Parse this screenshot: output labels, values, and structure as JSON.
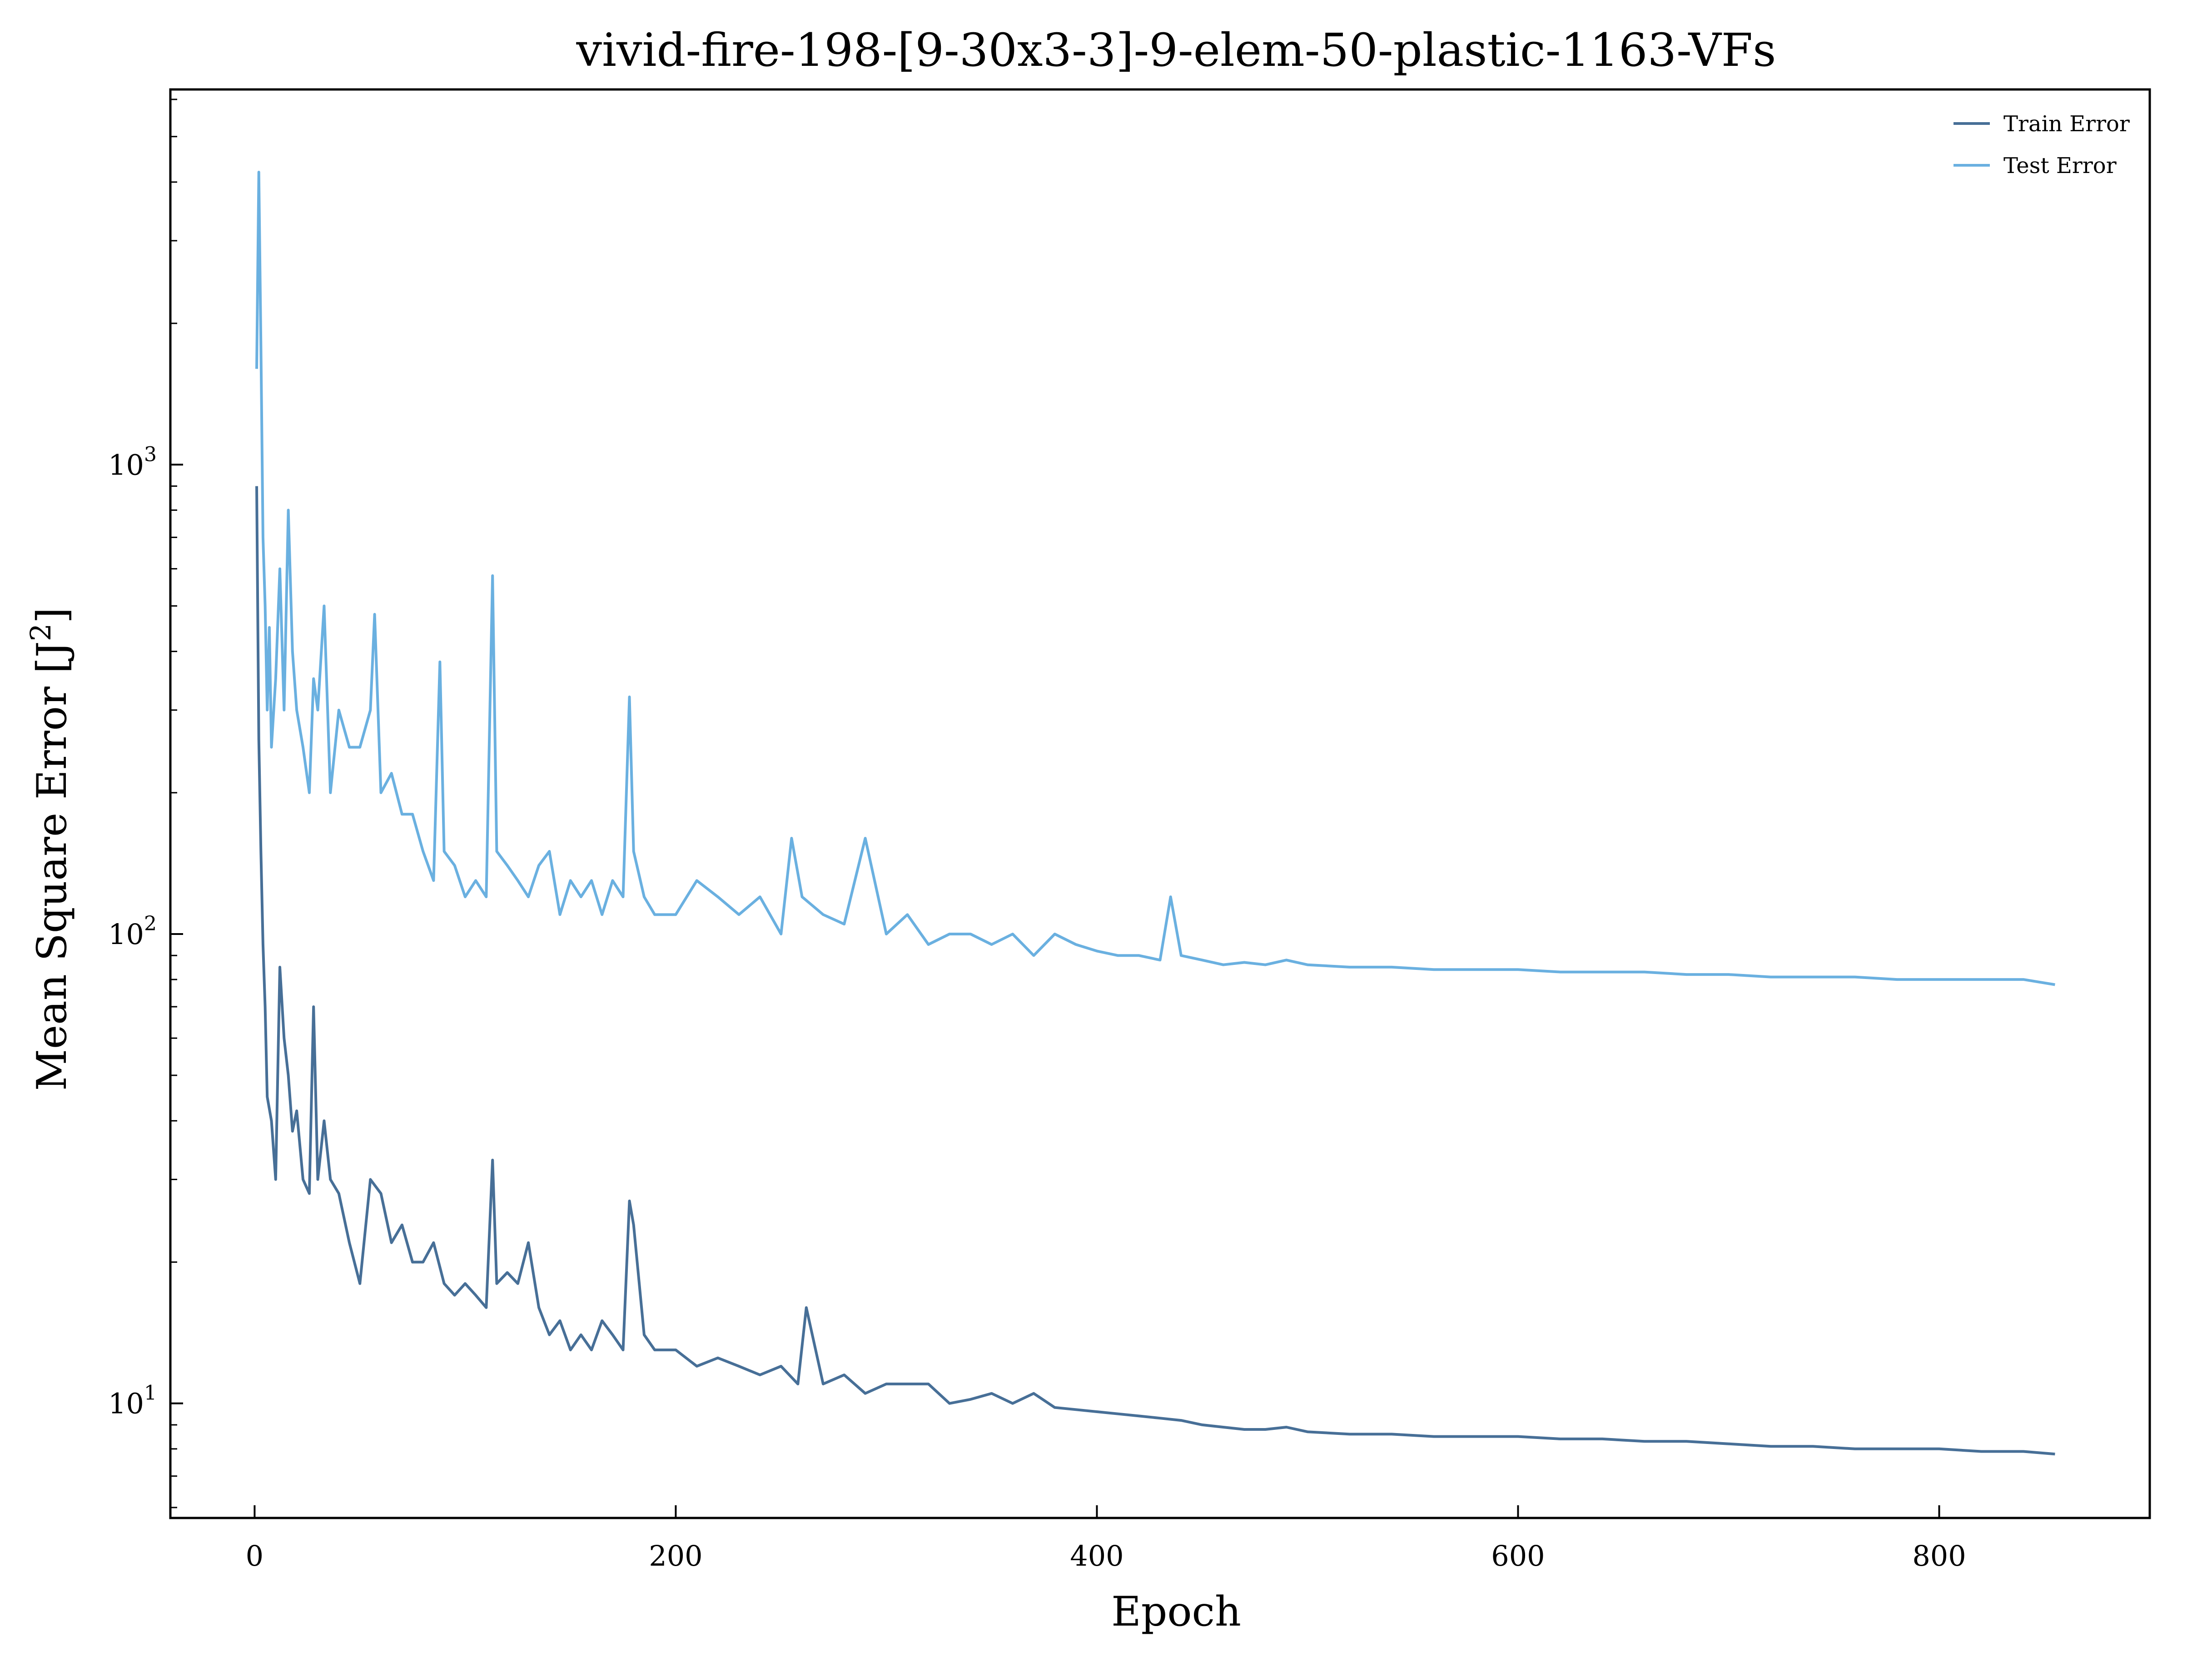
{
  "chart_data": {
    "type": "line",
    "title": "vivid-fire-198-[9-30x3-3]-9-elem-50-plastic-1163-VFs",
    "xlabel": "Epoch",
    "ylabel": "Mean Square Error [J",
    "ylabel_sup": "2",
    "ylabel_end": "]",
    "yscale": "log",
    "xlim": [
      -40,
      900
    ],
    "ylim": [
      5.7,
      6300
    ],
    "legend_position": "top-right",
    "grid": false,
    "x_ticks": [
      {
        "value": 0,
        "label": "0"
      },
      {
        "value": 200,
        "label": "200"
      },
      {
        "value": 400,
        "label": "400"
      },
      {
        "value": 600,
        "label": "600"
      },
      {
        "value": 800,
        "label": "800"
      }
    ],
    "y_ticks": [
      {
        "value": 10,
        "base": "10",
        "exp": "1"
      },
      {
        "value": 100,
        "base": "10",
        "exp": "2"
      },
      {
        "value": 1000,
        "base": "10",
        "exp": "3"
      }
    ],
    "series": [
      {
        "name": "Train Error",
        "color": "#476f97",
        "x": [
          1,
          2,
          3,
          4,
          5,
          6,
          8,
          10,
          12,
          14,
          16,
          18,
          20,
          23,
          26,
          28,
          30,
          33,
          36,
          40,
          45,
          50,
          55,
          60,
          65,
          70,
          75,
          80,
          85,
          90,
          95,
          100,
          105,
          110,
          113,
          115,
          120,
          125,
          130,
          135,
          140,
          145,
          150,
          155,
          160,
          165,
          170,
          175,
          178,
          180,
          185,
          190,
          200,
          210,
          220,
          230,
          240,
          250,
          258,
          262,
          270,
          280,
          290,
          300,
          310,
          320,
          330,
          340,
          350,
          360,
          370,
          380,
          390,
          400,
          410,
          420,
          430,
          440,
          450,
          460,
          470,
          480,
          490,
          500,
          520,
          540,
          560,
          580,
          600,
          620,
          640,
          660,
          680,
          700,
          720,
          740,
          760,
          780,
          800,
          820,
          840,
          855
        ],
        "y": [
          900,
          260,
          150,
          95,
          70,
          45,
          40,
          30,
          85,
          60,
          50,
          38,
          42,
          30,
          28,
          70,
          30,
          40,
          30,
          28,
          22,
          18,
          30,
          28,
          22,
          24,
          20,
          20,
          22,
          18,
          17,
          18,
          17,
          16,
          33,
          18,
          19,
          18,
          22,
          16,
          14,
          15,
          13,
          14,
          13,
          15,
          14,
          13,
          27,
          24,
          14,
          13,
          13,
          12,
          12.5,
          12,
          11.5,
          12,
          11,
          16,
          11,
          11.5,
          10.5,
          11,
          11,
          11,
          10,
          10.2,
          10.5,
          10,
          10.5,
          9.8,
          9.7,
          9.6,
          9.5,
          9.4,
          9.3,
          9.2,
          9.0,
          8.9,
          8.8,
          8.8,
          8.9,
          8.7,
          8.6,
          8.6,
          8.5,
          8.5,
          8.5,
          8.4,
          8.4,
          8.3,
          8.3,
          8.2,
          8.1,
          8.1,
          8.0,
          8.0,
          8.0,
          7.9,
          7.9,
          7.8
        ]
      },
      {
        "name": "Test Error",
        "color": "#6ab0e0",
        "x": [
          1,
          2,
          3,
          4,
          5,
          6,
          7,
          8,
          10,
          12,
          14,
          16,
          18,
          20,
          23,
          26,
          28,
          30,
          33,
          36,
          40,
          45,
          50,
          55,
          57,
          60,
          65,
          70,
          75,
          80,
          85,
          88,
          90,
          95,
          100,
          105,
          110,
          113,
          115,
          120,
          125,
          130,
          135,
          140,
          145,
          150,
          155,
          160,
          165,
          170,
          175,
          178,
          180,
          185,
          190,
          200,
          210,
          220,
          230,
          240,
          250,
          255,
          260,
          270,
          280,
          290,
          300,
          310,
          320,
          330,
          340,
          350,
          360,
          370,
          380,
          390,
          400,
          410,
          420,
          430,
          435,
          440,
          450,
          460,
          470,
          480,
          490,
          500,
          520,
          540,
          560,
          580,
          600,
          620,
          640,
          660,
          680,
          700,
          720,
          740,
          760,
          780,
          800,
          820,
          840,
          855
        ],
        "y": [
          1600,
          4200,
          1800,
          700,
          500,
          300,
          450,
          250,
          350,
          600,
          300,
          800,
          400,
          300,
          250,
          200,
          350,
          300,
          500,
          200,
          300,
          250,
          250,
          300,
          480,
          200,
          220,
          180,
          180,
          150,
          130,
          380,
          150,
          140,
          120,
          130,
          120,
          580,
          150,
          140,
          130,
          120,
          140,
          150,
          110,
          130,
          120,
          130,
          110,
          130,
          120,
          320,
          150,
          120,
          110,
          110,
          130,
          120,
          110,
          120,
          100,
          160,
          120,
          110,
          105,
          160,
          100,
          110,
          95,
          100,
          100,
          95,
          100,
          90,
          100,
          95,
          92,
          90,
          90,
          88,
          120,
          90,
          88,
          86,
          87,
          86,
          88,
          86,
          85,
          85,
          84,
          84,
          84,
          83,
          83,
          83,
          82,
          82,
          81,
          81,
          81,
          80,
          80,
          80,
          80,
          78
        ]
      }
    ]
  }
}
